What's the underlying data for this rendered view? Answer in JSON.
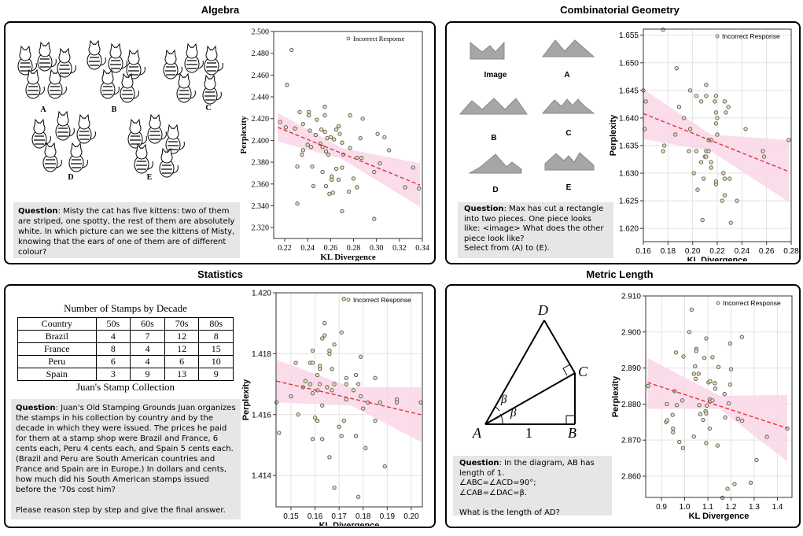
{
  "panels": {
    "algebra": {
      "title": "Algebra",
      "image_labels": [
        "A",
        "B",
        "C",
        "D",
        "E"
      ],
      "question_label": "Question",
      "question": ": Misty the cat has five kittens: two of them are striped, one spotty, the rest of them are absolutely white. In which picture can we see the kittens of Misty, knowing that the ears of one of them are of different colour?"
    },
    "combinatorial_geometry": {
      "title": "Combinatorial Geometry",
      "image_labels": [
        "Image",
        "A",
        "B",
        "C",
        "D",
        "E"
      ],
      "question_label": "Question",
      "question": ": Max has cut a rectangle into two pieces. One piece looks like: <image> What does the other piece look like?",
      "question_2": "Select from (A) to (E)."
    },
    "statistics": {
      "title": "Statistics",
      "table_title": "Number of Stamps by Decade",
      "table_headers": [
        "Country",
        "50s",
        "60s",
        "70s",
        "80s"
      ],
      "table_rows": [
        [
          "Brazil",
          "4",
          "7",
          "12",
          "8"
        ],
        [
          "France",
          "8",
          "4",
          "12",
          "15"
        ],
        [
          "Peru",
          "6",
          "4",
          "6",
          "10"
        ],
        [
          "Spain",
          "3",
          "9",
          "13",
          "9"
        ]
      ],
      "table_caption": "Juan's Stamp Collection",
      "question_label": "Question",
      "question": ": Juan's Old Stamping Grounds Juan organizes the stamps in his collection by country and by the decade in which they were issued. The prices he paid for them at a stamp shop were Brazil and France, 6 cents each, Peru 4 cents each, and Spain 5 cents each. (Brazil and Peru are South American countries and France and Spain are in Europe.) In dollars and cents, how much did his South American stamps issued before the '70s cost him?",
      "question_2": "Please reason step by step and give the final answer."
    },
    "metric_length": {
      "title": "Metric Length",
      "vertices": [
        "A",
        "B",
        "C",
        "D"
      ],
      "side_label": "1",
      "angle_label": "β",
      "question_label": "Question",
      "question": ":  In the diagram, AB has length of 1.",
      "question_2": "∠ABC=∠ACD=90°; ∠CAB=∠DAC=β.",
      "question_3": "What is the length of AD?"
    }
  },
  "colors": {
    "point_fill": "#e8e4b0",
    "point_stroke": "#555",
    "fit_line": "#e0323c",
    "band": "#f9d6e8"
  },
  "chart_data": [
    {
      "type": "scatter",
      "panel": "Algebra",
      "xlabel": "KL Divergence",
      "ylabel": "Perplexity",
      "legend": "Incorrect Response",
      "legend_position": "top-right",
      "grid": false,
      "xlim": [
        0.2104,
        0.34
      ],
      "ylim": [
        2.31,
        2.5
      ],
      "xticks": [
        "0.22",
        "0.24",
        "0.26",
        "0.28",
        "0.30",
        "0.32",
        "0.34"
      ],
      "yticks": [
        "2.320",
        "2.340",
        "2.360",
        "2.380",
        "2.400",
        "2.420",
        "2.440",
        "2.460",
        "2.480",
        "2.500"
      ],
      "points": [
        [
          0.216,
          2.417
        ],
        [
          0.221,
          2.412
        ],
        [
          0.222,
          2.451
        ],
        [
          0.226,
          2.483
        ],
        [
          0.229,
          2.411
        ],
        [
          0.231,
          2.376
        ],
        [
          0.231,
          2.342
        ],
        [
          0.233,
          2.426
        ],
        [
          0.235,
          2.387
        ],
        [
          0.236,
          2.415
        ],
        [
          0.236,
          2.391
        ],
        [
          0.24,
          2.396
        ],
        [
          0.241,
          2.426
        ],
        [
          0.241,
          2.423
        ],
        [
          0.242,
          2.409
        ],
        [
          0.243,
          2.394
        ],
        [
          0.244,
          2.376
        ],
        [
          0.245,
          2.358
        ],
        [
          0.247,
          2.405
        ],
        [
          0.248,
          2.419
        ],
        [
          0.251,
          2.397
        ],
        [
          0.252,
          2.41
        ],
        [
          0.253,
          2.394
        ],
        [
          0.253,
          2.371
        ],
        [
          0.255,
          2.431
        ],
        [
          0.255,
          2.423
        ],
        [
          0.255,
          2.408
        ],
        [
          0.256,
          2.39
        ],
        [
          0.256,
          2.358
        ],
        [
          0.257,
          2.402
        ],
        [
          0.258,
          2.387
        ],
        [
          0.259,
          2.351
        ],
        [
          0.26,
          2.403
        ],
        [
          0.261,
          2.367
        ],
        [
          0.261,
          2.364
        ],
        [
          0.262,
          2.352
        ],
        [
          0.263,
          2.401
        ],
        [
          0.265,
          2.41
        ],
        [
          0.265,
          2.374
        ],
        [
          0.267,
          2.413
        ],
        [
          0.267,
          2.364
        ],
        [
          0.268,
          2.406
        ],
        [
          0.27,
          2.375
        ],
        [
          0.27,
          2.398
        ],
        [
          0.271,
          2.387
        ],
        [
          0.27,
          2.335
        ],
        [
          0.276,
          2.353
        ],
        [
          0.277,
          2.423
        ],
        [
          0.277,
          2.393
        ],
        [
          0.28,
          2.365
        ],
        [
          0.283,
          2.384
        ],
        [
          0.283,
          2.357
        ],
        [
          0.286,
          2.402
        ],
        [
          0.287,
          2.384
        ],
        [
          0.288,
          2.42
        ],
        [
          0.298,
          2.371
        ],
        [
          0.298,
          2.328
        ],
        [
          0.301,
          2.406
        ],
        [
          0.303,
          2.379
        ],
        [
          0.307,
          2.403
        ],
        [
          0.311,
          2.391
        ],
        [
          0.325,
          2.357
        ],
        [
          0.332,
          2.375
        ],
        [
          0.337,
          2.356
        ]
      ],
      "fit": [
        [
          0.214,
          2.412
        ],
        [
          0.338,
          2.359
        ]
      ],
      "band": [
        [
          0.214,
          2.399,
          2.425
        ],
        [
          0.27,
          2.383,
          2.393
        ],
        [
          0.338,
          2.339,
          2.379
        ]
      ]
    },
    {
      "type": "scatter",
      "panel": "Combinatorial Geometry",
      "xlabel": "KL Divergence",
      "ylabel": "Perplexity",
      "legend": "Incorrect Response",
      "legend_position": "top-right",
      "grid": true,
      "xlim": [
        0.16,
        0.28
      ],
      "ylim": [
        1.6176,
        1.6561
      ],
      "xticks": [
        "0.16",
        "0.18",
        "0.20",
        "0.22",
        "0.24",
        "0.26",
        "0.28"
      ],
      "yticks": [
        "1.620",
        "1.625",
        "1.630",
        "1.635",
        "1.640",
        "1.645",
        "1.650",
        "1.655"
      ],
      "points": [
        [
          0.16,
          1.645
        ],
        [
          0.161,
          1.638
        ],
        [
          0.162,
          1.643
        ],
        [
          0.176,
          1.656
        ],
        [
          0.176,
          1.634
        ],
        [
          0.177,
          1.635
        ],
        [
          0.186,
          1.637
        ],
        [
          0.187,
          1.649
        ],
        [
          0.189,
          1.642
        ],
        [
          0.193,
          1.64
        ],
        [
          0.197,
          1.634
        ],
        [
          0.198,
          1.645
        ],
        [
          0.198,
          1.638
        ],
        [
          0.201,
          1.63
        ],
        [
          0.203,
          1.644
        ],
        [
          0.203,
          1.634
        ],
        [
          0.204,
          1.627
        ],
        [
          0.207,
          1.643
        ],
        [
          0.207,
          1.632
        ],
        [
          0.208,
          1.6215
        ],
        [
          0.209,
          1.629
        ],
        [
          0.21,
          1.633
        ],
        [
          0.211,
          1.644
        ],
        [
          0.211,
          1.646
        ],
        [
          0.211,
          1.634
        ],
        [
          0.211,
          1.633
        ],
        [
          0.213,
          1.636
        ],
        [
          0.213,
          1.634
        ],
        [
          0.215,
          1.636
        ],
        [
          0.215,
          1.632
        ],
        [
          0.215,
          1.631
        ],
        [
          0.218,
          1.643
        ],
        [
          0.219,
          1.644
        ],
        [
          0.219,
          1.641
        ],
        [
          0.219,
          1.639
        ],
        [
          0.219,
          1.628
        ],
        [
          0.219,
          1.6285
        ],
        [
          0.22,
          1.64
        ],
        [
          0.22,
          1.637
        ],
        [
          0.225,
          1.63
        ],
        [
          0.224,
          1.625
        ],
        [
          0.226,
          1.643
        ],
        [
          0.226,
          1.629
        ],
        [
          0.226,
          1.626
        ],
        [
          0.227,
          1.641
        ],
        [
          0.229,
          1.642
        ],
        [
          0.23,
          1.629
        ],
        [
          0.231,
          1.621
        ],
        [
          0.236,
          1.625
        ],
        [
          0.243,
          1.638
        ],
        [
          0.257,
          1.634
        ],
        [
          0.258,
          1.633
        ],
        [
          0.278,
          1.636
        ]
      ],
      "fit": [
        [
          0.16,
          1.6408
        ],
        [
          0.278,
          1.6303
        ]
      ],
      "band": [
        [
          0.16,
          1.6362,
          1.6452
        ],
        [
          0.215,
          1.634,
          1.637
        ],
        [
          0.278,
          1.6248,
          1.636
        ]
      ]
    },
    {
      "type": "scatter",
      "panel": "Statistics",
      "xlabel": "KL Divergence",
      "ylabel": "Perplexity",
      "legend": "Incorrect Response",
      "legend_position": "top-right",
      "grid": true,
      "xlim": [
        0.1438,
        0.2046
      ],
      "ylim": [
        1.41297,
        1.42
      ],
      "xticks": [
        "0.15",
        "0.16",
        "0.17",
        "0.18",
        "0.19",
        "0.20"
      ],
      "yticks": [
        "1.414",
        "1.416",
        "1.418",
        "1.420"
      ],
      "points": [
        [
          0.144,
          1.4164
        ],
        [
          0.145,
          1.4154
        ],
        [
          0.15,
          1.4166
        ],
        [
          0.152,
          1.4177
        ],
        [
          0.153,
          1.416
        ],
        [
          0.155,
          1.4169
        ],
        [
          0.156,
          1.4171
        ],
        [
          0.158,
          1.417
        ],
        [
          0.158,
          1.4177
        ],
        [
          0.159,
          1.4177
        ],
        [
          0.159,
          1.4167
        ],
        [
          0.159,
          1.4181
        ],
        [
          0.159,
          1.4152
        ],
        [
          0.16,
          1.4159
        ],
        [
          0.161,
          1.4158
        ],
        [
          0.161,
          1.4173
        ],
        [
          0.161,
          1.4168
        ],
        [
          0.162,
          1.4176
        ],
        [
          0.162,
          1.417
        ],
        [
          0.162,
          1.4175
        ],
        [
          0.163,
          1.4185
        ],
        [
          0.163,
          1.4163
        ],
        [
          0.163,
          1.4152
        ],
        [
          0.164,
          1.419
        ],
        [
          0.164,
          1.4186
        ],
        [
          0.165,
          1.4169
        ],
        [
          0.166,
          1.4146
        ],
        [
          0.166,
          1.418
        ],
        [
          0.166,
          1.4181
        ],
        [
          0.167,
          1.4168
        ],
        [
          0.167,
          1.4175
        ],
        [
          0.168,
          1.417
        ],
        [
          0.168,
          1.4183
        ],
        [
          0.168,
          1.4136
        ],
        [
          0.17,
          1.4156
        ],
        [
          0.171,
          1.4187
        ],
        [
          0.171,
          1.4153
        ],
        [
          0.172,
          1.4158
        ],
        [
          0.172,
          1.4198
        ],
        [
          0.173,
          1.417
        ],
        [
          0.173,
          1.4165
        ],
        [
          0.173,
          1.4172
        ],
        [
          0.176,
          1.4168
        ],
        [
          0.177,
          1.4173
        ],
        [
          0.177,
          1.4153
        ],
        [
          0.178,
          1.417
        ],
        [
          0.178,
          1.4133
        ],
        [
          0.179,
          1.4179
        ],
        [
          0.179,
          1.4166
        ],
        [
          0.18,
          1.4162
        ],
        [
          0.181,
          1.4149
        ],
        [
          0.182,
          1.4164
        ],
        [
          0.185,
          1.4172
        ],
        [
          0.185,
          1.4158
        ],
        [
          0.187,
          1.4164
        ],
        [
          0.189,
          1.4143
        ],
        [
          0.194,
          1.4165
        ],
        [
          0.194,
          1.4164
        ],
        [
          0.204,
          1.4164
        ]
      ],
      "fit": [
        [
          0.144,
          1.4171
        ],
        [
          0.204,
          1.416
        ]
      ],
      "band": [
        [
          0.144,
          1.4164,
          1.4178
        ],
        [
          0.175,
          1.4163,
          1.4169
        ],
        [
          0.204,
          1.4151,
          1.4169
        ]
      ]
    },
    {
      "type": "scatter",
      "panel": "Metric Length",
      "xlabel": "KL Divergence",
      "ylabel": "Perplexity",
      "legend": "Incorrect Response",
      "legend_position": "top-right",
      "grid": true,
      "xlim": [
        0.832,
        1.463
      ],
      "ylim": [
        2.8541,
        2.91
      ],
      "xticks": [
        "0.9",
        "1.0",
        "1.1",
        "1.2",
        "1.3",
        "1.4"
      ],
      "yticks": [
        "2.860",
        "2.870",
        "2.880",
        "2.890",
        "2.900",
        "2.910"
      ],
      "points": [
        [
          0.842,
          2.885
        ],
        [
          0.92,
          2.875
        ],
        [
          0.923,
          2.88
        ],
        [
          0.925,
          2.8755
        ],
        [
          0.948,
          2.877
        ],
        [
          0.95,
          2.8732
        ],
        [
          0.95,
          2.8722
        ],
        [
          0.957,
          2.8836
        ],
        [
          0.963,
          2.8943
        ],
        [
          0.966,
          2.8797
        ],
        [
          0.977,
          2.8695
        ],
        [
          0.99,
          2.881
        ],
        [
          0.993,
          2.8678
        ],
        [
          0.995,
          2.8932
        ],
        [
          1.02,
          2.9
        ],
        [
          1.03,
          2.9062
        ],
        [
          1.04,
          2.8884
        ],
        [
          1.04,
          2.871
        ],
        [
          1.045,
          2.8905
        ],
        [
          1.048,
          2.887
        ],
        [
          1.05,
          2.8953
        ],
        [
          1.05,
          2.8947
        ],
        [
          1.06,
          2.8884
        ],
        [
          1.063,
          2.8797
        ],
        [
          1.068,
          2.8772
        ],
        [
          1.08,
          2.8756
        ],
        [
          1.085,
          2.8928
        ],
        [
          1.09,
          2.878
        ],
        [
          1.093,
          2.8982
        ],
        [
          1.093,
          2.8774
        ],
        [
          1.093,
          2.8692
        ],
        [
          1.096,
          2.8796
        ],
        [
          1.103,
          2.886
        ],
        [
          1.108,
          2.8813
        ],
        [
          1.108,
          2.8732
        ],
        [
          1.11,
          2.8807
        ],
        [
          1.11,
          2.8863
        ],
        [
          1.12,
          2.881
        ],
        [
          1.12,
          2.893
        ],
        [
          1.13,
          2.8858
        ],
        [
          1.132,
          2.8843
        ],
        [
          1.142,
          2.8685
        ],
        [
          1.146,
          2.8903
        ],
        [
          1.163,
          2.854
        ],
        [
          1.172,
          2.8828
        ],
        [
          1.175,
          2.8763
        ],
        [
          1.185,
          2.8565
        ],
        [
          1.19,
          2.8802
        ],
        [
          1.196,
          2.8968
        ],
        [
          1.196,
          2.8854
        ],
        [
          1.2,
          2.8897
        ],
        [
          1.215,
          2.8578
        ],
        [
          1.23,
          2.8759
        ],
        [
          1.247,
          2.8986
        ],
        [
          1.248,
          2.8754
        ],
        [
          1.285,
          2.8582
        ],
        [
          1.31,
          2.8645
        ],
        [
          1.355,
          2.8709
        ],
        [
          1.443,
          2.8732
        ]
      ],
      "fit": [
        [
          0.84,
          2.886
        ],
        [
          1.443,
          2.8733
        ]
      ],
      "band": [
        [
          0.84,
          2.8787,
          2.8928
        ],
        [
          1.15,
          2.8787,
          2.8823
        ],
        [
          1.443,
          2.8641,
          2.8825
        ]
      ]
    }
  ]
}
